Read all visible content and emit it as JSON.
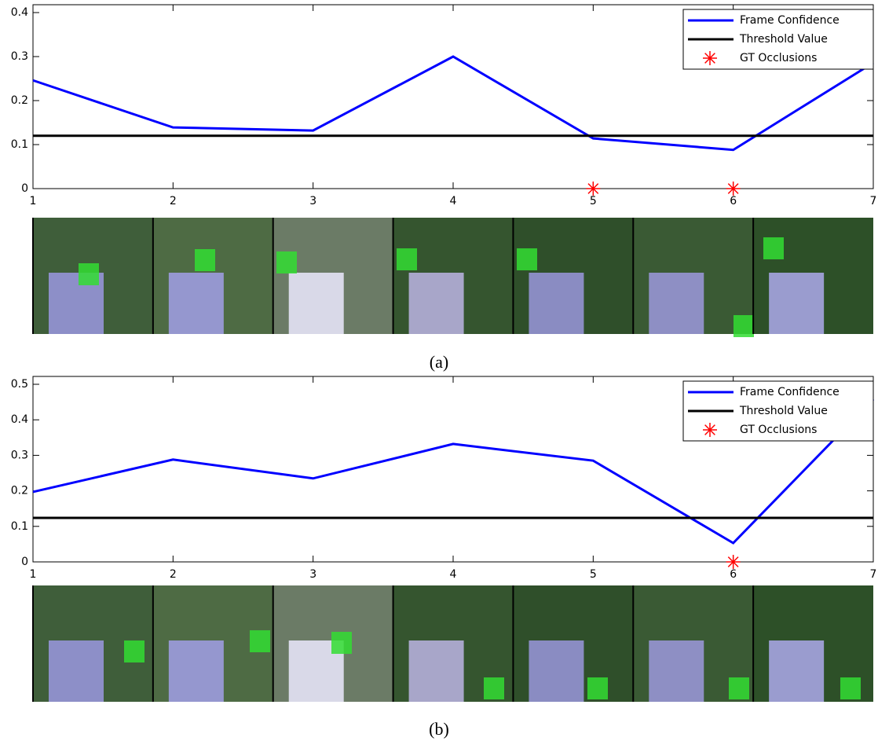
{
  "chart_data": [
    {
      "type": "line",
      "caption": "(a)",
      "x": [
        1,
        2,
        3,
        4,
        5,
        6,
        7
      ],
      "series": [
        {
          "name": "Frame Confidence",
          "color": "#0000ff",
          "values": [
            0.246,
            0.139,
            0.132,
            0.3,
            0.114,
            0.088,
            0.286
          ]
        },
        {
          "name": "Threshold Value",
          "color": "#000000",
          "values": [
            0.12,
            0.12,
            0.12,
            0.12,
            0.12,
            0.12,
            0.12
          ]
        },
        {
          "name": "GT Occlusions",
          "color": "#ff0000",
          "marker": "asterisk",
          "values": [
            null,
            null,
            null,
            null,
            0,
            0,
            null
          ]
        }
      ],
      "xlim": [
        1,
        7
      ],
      "ylim": [
        0,
        0.4
      ],
      "xticks": [
        1,
        2,
        3,
        4,
        5,
        6,
        7
      ],
      "yticks": [
        0,
        0.1,
        0.2,
        0.3,
        0.4
      ],
      "legend": "upper right"
    },
    {
      "type": "line",
      "caption": "(b)",
      "x": [
        1,
        2,
        3,
        4,
        5,
        6,
        7
      ],
      "series": [
        {
          "name": "Frame Confidence",
          "color": "#0000ff",
          "values": [
            0.197,
            0.288,
            0.235,
            0.332,
            0.285,
            0.053,
            0.458
          ]
        },
        {
          "name": "Threshold Value",
          "color": "#000000",
          "values": [
            0.124,
            0.124,
            0.124,
            0.124,
            0.124,
            0.124,
            0.124
          ]
        },
        {
          "name": "GT Occlusions",
          "color": "#ff0000",
          "marker": "asterisk",
          "values": [
            null,
            null,
            null,
            null,
            null,
            0,
            null
          ]
        }
      ],
      "xlim": [
        1,
        7
      ],
      "ylim": [
        0,
        0.5
      ],
      "xticks": [
        1,
        2,
        3,
        4,
        5,
        6,
        7
      ],
      "yticks": [
        0,
        0.1,
        0.2,
        0.3,
        0.4,
        0.5
      ],
      "legend": "upper right"
    }
  ]
}
